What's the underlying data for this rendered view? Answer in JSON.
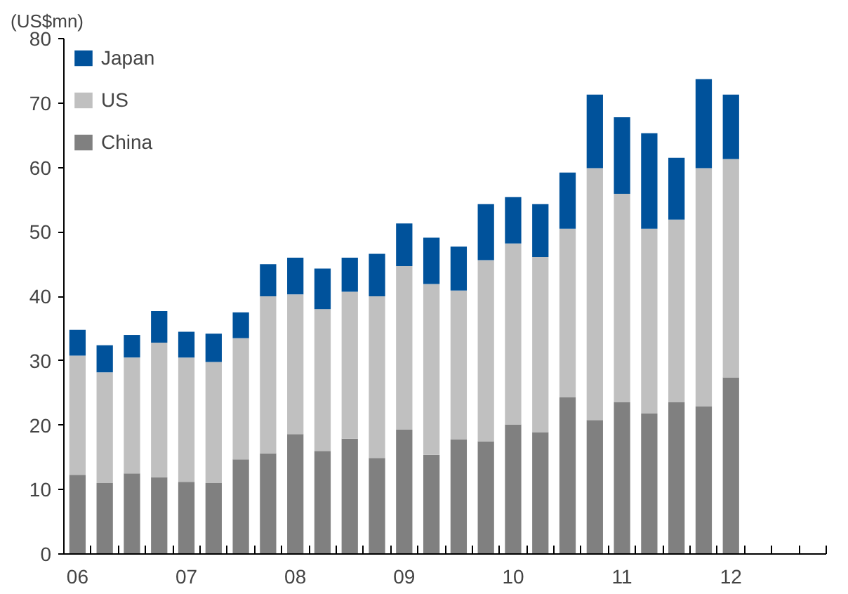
{
  "chart_data": {
    "type": "bar",
    "stacked": true,
    "ylabel": "(US$mn)",
    "categories": [
      "06",
      null,
      null,
      null,
      "07",
      null,
      null,
      null,
      "08",
      null,
      null,
      null,
      "09",
      null,
      null,
      null,
      "10",
      null,
      null,
      null,
      "11",
      null,
      null,
      null,
      "12",
      null,
      null,
      null
    ],
    "series": [
      {
        "name": "China",
        "color": "#808080",
        "values": [
          12.3,
          11,
          12.5,
          11.9,
          11.2,
          11,
          14.7,
          15.6,
          18.6,
          16,
          17.9,
          14.9,
          19.3,
          15.4,
          17.8,
          17.5,
          20.1,
          18.9,
          24.3,
          20.8,
          23.6,
          21.8,
          23.6,
          22.9,
          27.4,
          null,
          null,
          null
        ]
      },
      {
        "name": "US",
        "color": "#c0c0c0",
        "values": [
          18.5,
          17.2,
          18,
          20.9,
          19.3,
          18.8,
          18.8,
          24.4,
          21.7,
          22,
          22.8,
          25.1,
          25.4,
          26.5,
          23.1,
          28.1,
          28.1,
          27.2,
          26.2,
          39.1,
          32.3,
          28.7,
          28.3,
          37.0,
          33.9,
          null,
          null,
          null
        ]
      },
      {
        "name": "Japan",
        "color": "#00529b",
        "values": [
          4.0,
          4.2,
          3.5,
          4.9,
          4.0,
          4.4,
          4.0,
          5,
          5.7,
          6.3,
          5.3,
          6.6,
          6.6,
          7.2,
          6.8,
          8.7,
          7.2,
          8.2,
          8.7,
          11.4,
          11.9,
          14.8,
          9.6,
          13.8,
          10.0,
          null,
          null,
          null
        ]
      }
    ],
    "ylim": [
      0,
      80
    ],
    "yticks": [
      0,
      10,
      20,
      30,
      40,
      50,
      60,
      70,
      80
    ],
    "grid": false,
    "legend": "top left"
  }
}
